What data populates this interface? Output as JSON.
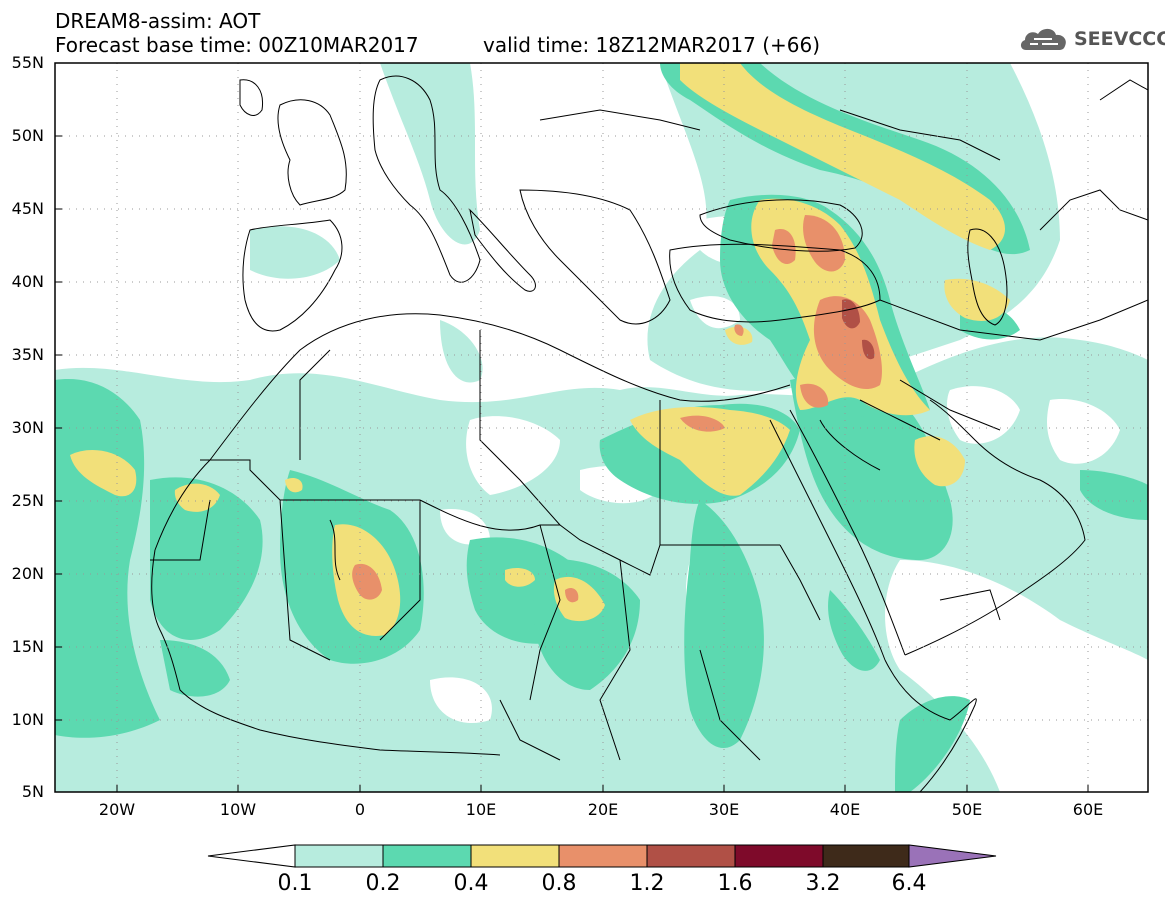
{
  "header": {
    "title": "DREAM8-assim: AOT",
    "base_time": "Forecast base time: 00Z10MAR2017",
    "valid_time": "valid time: 18Z12MAR2017 (+66)"
  },
  "logo": {
    "text": "SEEVCCC",
    "icon": "cloud-icon"
  },
  "axes": {
    "lat_labels": [
      "55N",
      "50N",
      "45N",
      "40N",
      "35N",
      "30N",
      "25N",
      "20N",
      "15N",
      "10N",
      "5N"
    ],
    "lon_labels": [
      "20W",
      "10W",
      "0",
      "10E",
      "20E",
      "30E",
      "40E",
      "50E",
      "60E"
    ]
  },
  "colorbar": {
    "labels": [
      "0.1",
      "0.2",
      "0.4",
      "0.8",
      "1.2",
      "1.6",
      "3.2",
      "6.4"
    ],
    "colors": [
      "#ffffff",
      "#b7ecde",
      "#5cd9b0",
      "#f2e07a",
      "#e8906a",
      "#b05046",
      "#7e0a2a",
      "#3e2a1a",
      "#9a72b8"
    ]
  }
}
